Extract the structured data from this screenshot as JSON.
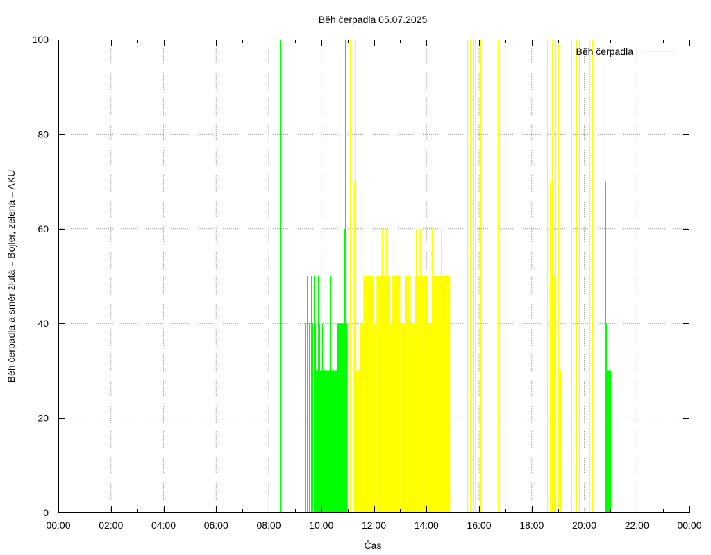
{
  "chart_data": {
    "type": "bar",
    "title": "Běh čerpadla 05.07.2025",
    "xlabel": "Čas",
    "ylabel": "Běh čerpadla a směr žlutá = Bojler, zelená = AKU",
    "x_unit": "hours",
    "xlim": [
      0,
      24
    ],
    "ylim": [
      0,
      100
    ],
    "grid": true,
    "legend": {
      "placement": "top-right",
      "entries": [
        {
          "label": "Běh čerpadla",
          "color": "#ffff00"
        }
      ]
    },
    "x_ticks": [
      {
        "v": 0,
        "label": "00:00"
      },
      {
        "v": 2,
        "label": "02:00"
      },
      {
        "v": 4,
        "label": "04:00"
      },
      {
        "v": 6,
        "label": "06:00"
      },
      {
        "v": 8,
        "label": "08:00"
      },
      {
        "v": 10,
        "label": "10:00"
      },
      {
        "v": 12,
        "label": "12:00"
      },
      {
        "v": 14,
        "label": "14:00"
      },
      {
        "v": 16,
        "label": "16:00"
      },
      {
        "v": 18,
        "label": "18:00"
      },
      {
        "v": 20,
        "label": "20:00"
      },
      {
        "v": 22,
        "label": "22:00"
      },
      {
        "v": 24,
        "label": "00:00"
      }
    ],
    "y_ticks": [
      {
        "v": 0,
        "label": "0"
      },
      {
        "v": 20,
        "label": "20"
      },
      {
        "v": 40,
        "label": "40"
      },
      {
        "v": 60,
        "label": "60"
      },
      {
        "v": 80,
        "label": "80"
      },
      {
        "v": 100,
        "label": "100"
      }
    ],
    "series": [
      {
        "color": "#00ff00",
        "direction": "AKU",
        "spikes": [
          [
            8.43,
            100
          ],
          [
            8.87,
            50
          ],
          [
            9.13,
            50
          ],
          [
            9.3,
            100
          ],
          [
            9.38,
            40
          ],
          [
            9.45,
            50
          ],
          [
            9.53,
            40
          ],
          [
            9.6,
            50
          ],
          [
            9.67,
            40
          ],
          [
            9.72,
            50
          ],
          [
            9.77,
            40
          ],
          [
            9.82,
            40
          ],
          [
            9.87,
            50
          ],
          [
            9.92,
            40
          ],
          [
            9.97,
            40
          ],
          [
            10.02,
            40
          ],
          [
            10.32,
            50
          ],
          [
            10.6,
            80
          ],
          [
            10.87,
            60
          ],
          [
            10.9,
            100
          ],
          [
            20.77,
            100
          ],
          [
            20.8,
            70
          ],
          [
            20.83,
            40
          ]
        ],
        "blocks": [
          [
            9.77,
            10.6,
            30
          ],
          [
            10.6,
            11.0,
            40
          ],
          [
            20.83,
            21.02,
            30
          ]
        ]
      },
      {
        "color": "#ffff00",
        "direction": "Bojler",
        "spikes": [
          [
            11.1,
            100
          ],
          [
            11.2,
            100
          ],
          [
            11.25,
            70
          ],
          [
            11.3,
            100
          ],
          [
            11.37,
            100
          ],
          [
            11.45,
            40
          ],
          [
            11.55,
            50
          ],
          [
            12.3,
            60
          ],
          [
            12.45,
            60
          ],
          [
            13.6,
            60
          ],
          [
            13.75,
            60
          ],
          [
            14.2,
            60
          ],
          [
            14.3,
            60
          ],
          [
            14.4,
            60
          ],
          [
            14.5,
            60
          ],
          [
            14.55,
            60
          ],
          [
            15.25,
            100
          ],
          [
            15.35,
            100
          ],
          [
            15.45,
            100
          ],
          [
            15.55,
            100
          ],
          [
            15.65,
            100
          ],
          [
            15.75,
            100
          ],
          [
            15.85,
            100
          ],
          [
            15.95,
            100
          ],
          [
            16.05,
            100
          ],
          [
            16.3,
            100
          ],
          [
            16.55,
            100
          ],
          [
            16.7,
            100
          ],
          [
            17.5,
            100
          ],
          [
            17.85,
            100
          ],
          [
            18.6,
            100
          ],
          [
            18.7,
            70
          ],
          [
            18.78,
            100
          ],
          [
            18.85,
            50
          ],
          [
            18.9,
            100
          ],
          [
            19.0,
            100
          ],
          [
            19.1,
            30
          ],
          [
            19.4,
            30
          ],
          [
            19.5,
            100
          ],
          [
            19.6,
            100
          ],
          [
            19.7,
            100
          ],
          [
            19.8,
            100
          ],
          [
            20.1,
            100
          ],
          [
            20.2,
            100
          ],
          [
            20.3,
            100
          ]
        ],
        "blocks": [
          [
            11.25,
            11.45,
            30
          ],
          [
            11.45,
            11.6,
            40
          ],
          [
            11.6,
            12.0,
            50
          ],
          [
            12.0,
            12.1,
            40
          ],
          [
            12.1,
            12.6,
            50
          ],
          [
            12.6,
            12.7,
            40
          ],
          [
            12.7,
            13.0,
            50
          ],
          [
            13.0,
            13.2,
            40
          ],
          [
            13.2,
            13.4,
            50
          ],
          [
            13.4,
            13.55,
            40
          ],
          [
            13.55,
            13.65,
            50
          ],
          [
            13.65,
            13.85,
            50
          ],
          [
            13.85,
            14.05,
            50
          ],
          [
            14.05,
            14.25,
            40
          ],
          [
            14.25,
            14.9,
            50
          ]
        ]
      }
    ]
  }
}
